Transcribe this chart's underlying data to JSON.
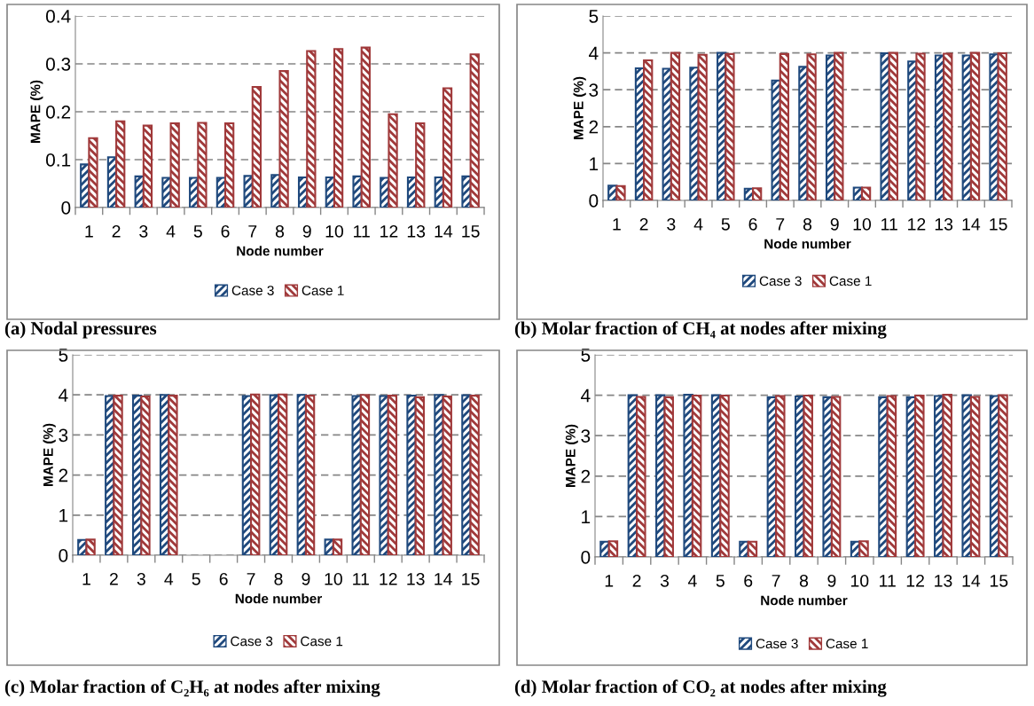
{
  "chart_data": [
    {
      "type": "bar",
      "title": "(a) Nodal pressures",
      "xlabel": "Node number",
      "ylabel": "MAPE (%)",
      "categories": [
        "1",
        "2",
        "3",
        "4",
        "5",
        "6",
        "7",
        "8",
        "9",
        "10",
        "11",
        "12",
        "13",
        "14",
        "15"
      ],
      "ylim": [
        0,
        0.4
      ],
      "yticks": [
        0,
        0.1,
        0.2,
        0.3,
        0.4
      ],
      "grid": "y",
      "legend": "bottom",
      "series": [
        {
          "name": "Case 3",
          "color": "#1f497d",
          "values": [
            0.09,
            0.105,
            0.065,
            0.062,
            0.062,
            0.062,
            0.066,
            0.068,
            0.063,
            0.063,
            0.065,
            0.062,
            0.063,
            0.063,
            0.065
          ]
        },
        {
          "name": "Case 1",
          "color": "#a0393a",
          "values": [
            0.145,
            0.18,
            0.171,
            0.176,
            0.177,
            0.176,
            0.252,
            0.285,
            0.327,
            0.331,
            0.334,
            0.195,
            0.176,
            0.249,
            0.32
          ]
        }
      ]
    },
    {
      "type": "bar",
      "title": "(b) Molar fraction of CH₄ at nodes after mixing",
      "xlabel": "Node number",
      "ylabel": "MAPE (%)",
      "categories": [
        "1",
        "2",
        "3",
        "4",
        "5",
        "6",
        "7",
        "8",
        "9",
        "10",
        "11",
        "12",
        "13",
        "14",
        "15"
      ],
      "ylim": [
        0,
        5
      ],
      "yticks": [
        0,
        1,
        2,
        3,
        4,
        5
      ],
      "grid": "y",
      "legend": "bottom",
      "series": [
        {
          "name": "Case 3",
          "color": "#1f497d",
          "values": [
            0.4,
            3.58,
            3.57,
            3.6,
            4.0,
            0.32,
            3.25,
            3.62,
            3.93,
            0.35,
            3.99,
            3.77,
            3.93,
            3.93,
            3.96
          ]
        },
        {
          "name": "Case 1",
          "color": "#a0393a",
          "values": [
            0.39,
            3.8,
            4.0,
            3.95,
            3.97,
            0.33,
            3.97,
            3.96,
            4.0,
            0.35,
            4.0,
            3.98,
            3.98,
            4.0,
            3.99
          ]
        }
      ]
    },
    {
      "type": "bar",
      "title": "(c) Molar fraction of C₂H₆ at nodes after mixing",
      "xlabel": "Node number",
      "ylabel": "MAPE (%)",
      "categories": [
        "1",
        "2",
        "3",
        "4",
        "5",
        "6",
        "7",
        "8",
        "9",
        "10",
        "11",
        "12",
        "13",
        "14",
        "15"
      ],
      "ylim": [
        0,
        5
      ],
      "yticks": [
        0,
        1,
        2,
        3,
        4,
        5
      ],
      "grid": "y",
      "legend": "bottom",
      "series": [
        {
          "name": "Case 3",
          "color": "#1f497d",
          "values": [
            0.38,
            3.97,
            3.98,
            4.0,
            null,
            null,
            3.97,
            3.99,
            4.0,
            0.39,
            3.97,
            3.97,
            3.98,
            4.0,
            3.99
          ]
        },
        {
          "name": "Case 1",
          "color": "#a0393a",
          "values": [
            0.39,
            3.98,
            3.96,
            3.98,
            null,
            null,
            4.01,
            4.01,
            3.98,
            0.39,
            4.0,
            3.98,
            3.94,
            3.96,
            3.98
          ]
        }
      ]
    },
    {
      "type": "bar",
      "title": "(d) Molar fraction of CO₂ at nodes after mixing",
      "xlabel": "Node number",
      "ylabel": "MAPE (%)",
      "categories": [
        "1",
        "2",
        "3",
        "4",
        "5",
        "6",
        "7",
        "8",
        "9",
        "10",
        "11",
        "12",
        "13",
        "14",
        "15"
      ],
      "ylim": [
        0,
        5
      ],
      "yticks": [
        0,
        1,
        2,
        3,
        4,
        5
      ],
      "grid": "y",
      "legend": "bottom",
      "series": [
        {
          "name": "Case 3",
          "color": "#1f497d",
          "values": [
            0.38,
            4.0,
            4.0,
            4.01,
            4.0,
            0.38,
            3.95,
            3.97,
            3.95,
            0.38,
            3.95,
            3.95,
            3.98,
            4.0,
            3.98
          ]
        },
        {
          "name": "Case 1",
          "color": "#a0393a",
          "values": [
            0.39,
            3.96,
            3.95,
            3.99,
            3.99,
            0.38,
            3.98,
            3.99,
            3.96,
            0.39,
            3.98,
            3.99,
            4.01,
            3.96,
            4.0
          ]
        }
      ]
    }
  ]
}
